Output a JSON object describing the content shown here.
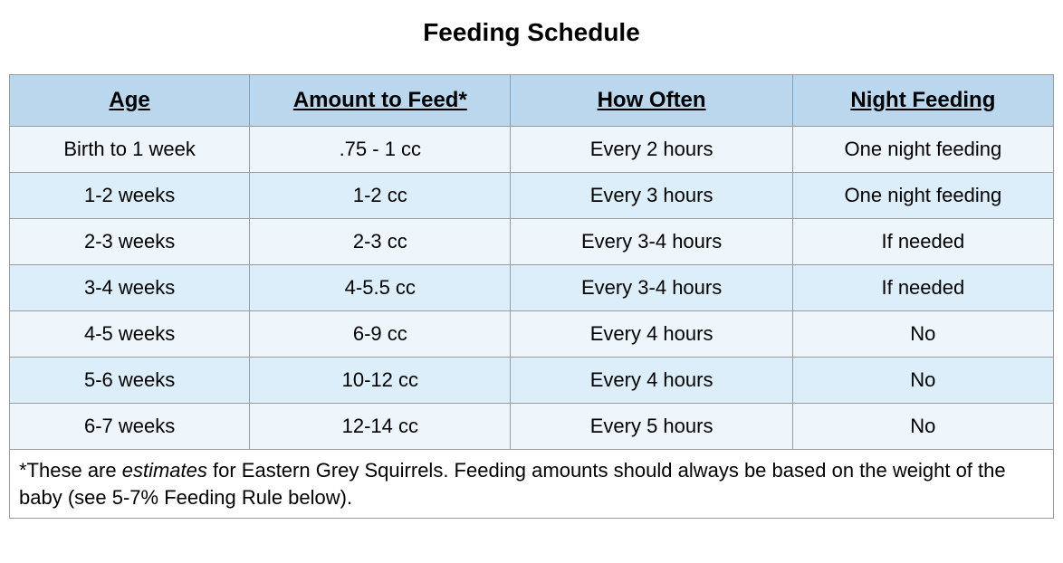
{
  "title": "Feeding Schedule",
  "table": {
    "columns": [
      {
        "label": "Age"
      },
      {
        "label": "Amount to Feed*"
      },
      {
        "label": "How Often"
      },
      {
        "label": "Night Feeding"
      }
    ],
    "rows": [
      {
        "age": "Birth to 1 week",
        "amount": ".75 - 1 cc",
        "how_often": "Every 2 hours",
        "night": "One night feeding"
      },
      {
        "age": "1-2 weeks",
        "amount": "1-2 cc",
        "how_often": "Every 3 hours",
        "night": "One night feeding"
      },
      {
        "age": "2-3 weeks",
        "amount": "2-3 cc",
        "how_often": "Every 3-4 hours",
        "night": "If needed"
      },
      {
        "age": "3-4 weeks",
        "amount": "4-5.5 cc",
        "how_often": "Every 3-4 hours",
        "night": "If needed"
      },
      {
        "age": "4-5 weeks",
        "amount": "6-9 cc",
        "how_often": "Every 4 hours",
        "night": "No"
      },
      {
        "age": "5-6 weeks",
        "amount": "10-12 cc",
        "how_often": "Every 4 hours",
        "night": "No"
      },
      {
        "age": "6-7 weeks",
        "amount": "12-14 cc",
        "how_often": "Every 5 hours",
        "night": "No"
      }
    ],
    "header_bg": "#bbd7ee",
    "row_bg_light": "#eef6fc",
    "row_bg_dark": "#dceefa",
    "border_color": "#9b9b9b",
    "title_fontsize": 28,
    "header_fontsize": 24,
    "cell_fontsize": 22
  },
  "footnote": {
    "prefix": "*These are ",
    "emph": "estimates",
    "suffix": " for Eastern Grey Squirrels. Feeding amounts should always be based on the weight of the baby (see 5-7% Feeding Rule below)."
  }
}
